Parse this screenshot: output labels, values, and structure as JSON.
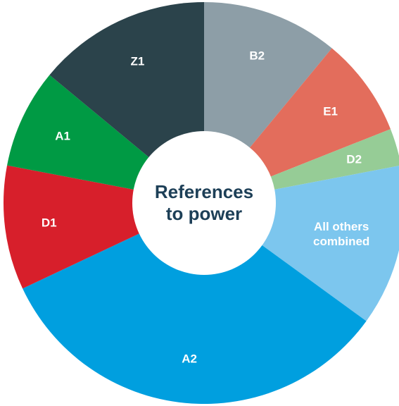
{
  "chart_data": {
    "type": "pie",
    "title": "References to power",
    "categories": [
      "B2",
      "E1",
      "D2",
      "All others combined",
      "A2",
      "D1",
      "A1",
      "Z1"
    ],
    "values": [
      11,
      8,
      3,
      13,
      33,
      10,
      8,
      14
    ],
    "colors": [
      "#8d9ea7",
      "#e36d5c",
      "#96cc96",
      "#7cc6ee",
      "#009fdf",
      "#d71f2b",
      "#009a44",
      "#2b434b"
    ]
  }
}
